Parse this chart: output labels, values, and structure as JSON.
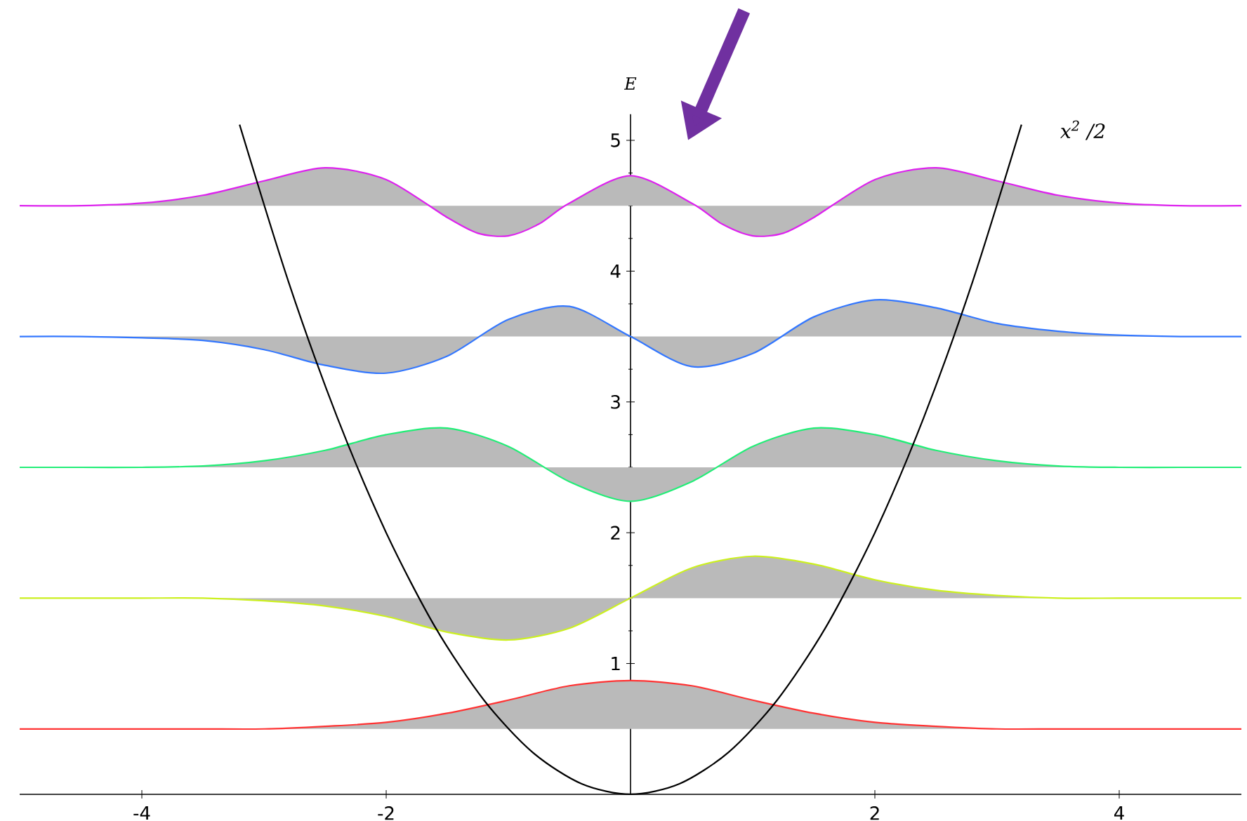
{
  "chart_data": {
    "type": "line",
    "ylabel": "E",
    "x": [
      -5,
      -4.5,
      -4,
      -3.5,
      -3,
      -2.5,
      -2,
      -1.5,
      -1,
      -0.5,
      0,
      0.5,
      1,
      1.5,
      2,
      2.5,
      3,
      3.5,
      4,
      4.5,
      5
    ],
    "xlim": [
      -5,
      5
    ],
    "ylim": [
      0,
      5.2
    ],
    "xticks": [
      -4,
      -2,
      2,
      4
    ],
    "yticks": [
      1,
      2,
      3,
      4,
      5
    ],
    "marker": "none",
    "line_style": "solid",
    "series": [
      {
        "color": "#ff3333",
        "values": [
          0.5,
          0.5,
          0.5,
          0.5,
          0.5,
          0.52,
          0.55,
          0.62,
          0.72,
          0.83,
          0.87,
          0.83,
          0.72,
          0.62,
          0.55,
          0.52,
          0.5,
          0.5,
          0.5,
          0.5,
          0.5
        ]
      },
      {
        "color": "#ccf020",
        "values": [
          1.5,
          1.5,
          1.5,
          1.5,
          1.48,
          1.44,
          1.36,
          1.24,
          1.18,
          1.27,
          1.5,
          1.73,
          1.82,
          1.76,
          1.64,
          1.56,
          1.52,
          1.5,
          1.5,
          1.5,
          1.5
        ]
      },
      {
        "color": "#22ee77",
        "values": [
          2.5,
          2.5,
          2.5,
          2.51,
          2.55,
          2.63,
          2.75,
          2.8,
          2.66,
          2.39,
          2.24,
          2.39,
          2.66,
          2.8,
          2.75,
          2.63,
          2.55,
          2.51,
          2.5,
          2.5,
          2.5
        ]
      },
      {
        "color": "#3377ff",
        "values": [
          3.5,
          3.5,
          3.49,
          3.47,
          3.4,
          3.28,
          3.22,
          3.35,
          3.63,
          3.73,
          3.5,
          3.27,
          3.37,
          3.65,
          3.78,
          3.72,
          3.6,
          3.54,
          3.51,
          3.5,
          3.5
        ]
      },
      {
        "color": "#dd22ee",
        "x": [
          -5,
          -4.5,
          -4,
          -3.5,
          -3,
          -2.5,
          -2,
          -1.5,
          -1.25,
          -1,
          -0.75,
          -0.5,
          0,
          0.5,
          0.75,
          1,
          1.25,
          1.5,
          2,
          2.5,
          3,
          3.5,
          4,
          4.5,
          5
        ],
        "values": [
          4.5,
          4.5,
          4.52,
          4.58,
          4.69,
          4.79,
          4.7,
          4.41,
          4.29,
          4.27,
          4.36,
          4.52,
          4.73,
          4.52,
          4.36,
          4.27,
          4.29,
          4.41,
          4.7,
          4.79,
          4.69,
          4.58,
          4.52,
          4.5,
          4.5
        ]
      },
      {
        "name": "x$^{2}$ /2",
        "color": "#000000",
        "x": [
          -3.2,
          -2.8,
          -2.4,
          -2,
          -1.6,
          -1.2,
          -0.8,
          -0.4,
          0,
          0.4,
          0.8,
          1.2,
          1.6,
          2,
          2.4,
          2.8,
          3.2
        ],
        "values": [
          5.12,
          3.92,
          2.88,
          2.0,
          1.28,
          0.72,
          0.32,
          0.08,
          0,
          0.08,
          0.32,
          0.72,
          1.28,
          2.0,
          2.88,
          3.92,
          5.12
        ]
      }
    ]
  }
}
